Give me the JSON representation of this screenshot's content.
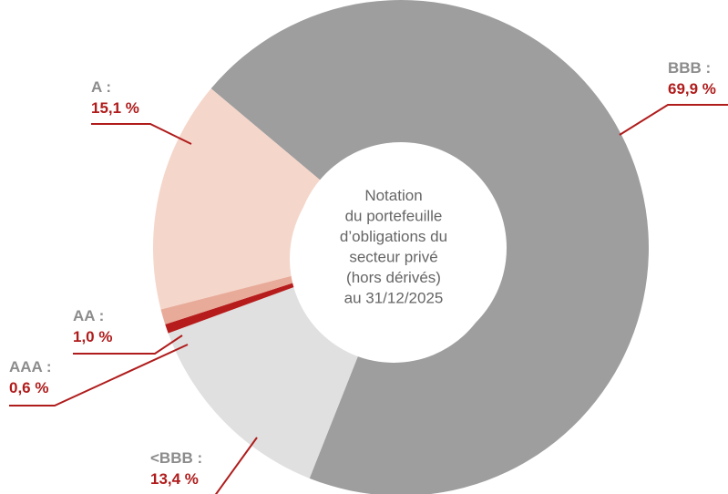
{
  "chart_data": {
    "type": "donut",
    "categories": [
      "BBB :",
      "<BBB :",
      "AAA :",
      "AA :",
      "A :"
    ],
    "values": [
      69.9,
      13.4,
      0.6,
      1.0,
      15.1
    ],
    "value_labels": [
      "69,9 %",
      "13,4 %",
      "0,6 %",
      "1,0 %",
      "15,1 %"
    ],
    "colors": [
      "#9e9e9e",
      "#e0e0e0",
      "#b71c1c",
      "#e8ab99",
      "#f5d6ca"
    ],
    "center_text": [
      "Notation",
      "du portefeuille",
      "d’obligations du",
      "secteur privé",
      "(hors dérivés)",
      "au 31/12/2025"
    ]
  }
}
